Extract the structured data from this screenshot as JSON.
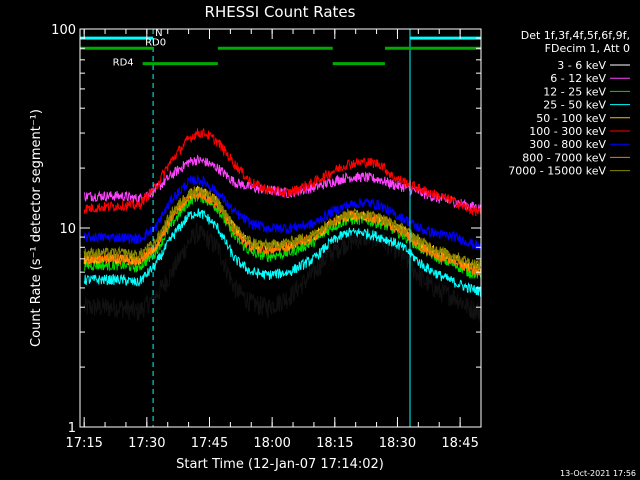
{
  "chart_data": {
    "type": "line",
    "title": "RHESSI Count Rates",
    "xlabel": "Start Time (12-Jan-07 17:14:02)",
    "ylabel": "Count Rate (s⁻¹ detector segment⁻¹)",
    "yscale": "log",
    "ylim": [
      1,
      100
    ],
    "xlim_minutes": [
      0,
      96
    ],
    "x_ticks": [
      {
        "t": 1,
        "label": "17:15"
      },
      {
        "t": 16,
        "label": "17:30"
      },
      {
        "t": 31,
        "label": "17:45"
      },
      {
        "t": 46,
        "label": "18:00"
      },
      {
        "t": 61,
        "label": "18:15"
      },
      {
        "t": 76,
        "label": "18:30"
      },
      {
        "t": 91,
        "label": "18:45"
      }
    ],
    "y_ticks": [
      {
        "v": 1,
        "label": "1"
      },
      {
        "v": 10,
        "label": "10"
      },
      {
        "v": 100,
        "label": "100"
      }
    ],
    "x_unit": "minutes from 17:14",
    "legend_header": [
      "Det 1f,3f,4f,5f,6f,9f,",
      "FDecim 1, Att 0"
    ],
    "series": [
      {
        "name": "3 - 6 keV",
        "color": "#000000",
        "noise": 0.1,
        "points": [
          [
            1,
            4
          ],
          [
            10,
            4
          ],
          [
            14,
            3.8
          ],
          [
            18,
            4.5
          ],
          [
            22,
            6
          ],
          [
            26,
            8.5
          ],
          [
            28,
            9.5
          ],
          [
            30,
            9
          ],
          [
            33,
            8
          ],
          [
            37,
            5
          ],
          [
            41,
            4.2
          ],
          [
            45,
            4
          ],
          [
            50,
            4.5
          ],
          [
            56,
            6
          ],
          [
            60,
            7.5
          ],
          [
            64,
            8.5
          ],
          [
            68,
            9
          ],
          [
            72,
            8.8
          ],
          [
            75,
            8
          ],
          [
            78,
            7
          ],
          [
            82,
            5.5
          ],
          [
            86,
            4.8
          ],
          [
            90,
            4.5
          ],
          [
            93,
            4
          ],
          [
            96,
            3.8
          ]
        ]
      },
      {
        "name": "6 - 12 keV",
        "color": "#ff44ff",
        "points": [
          [
            1,
            14.5
          ],
          [
            10,
            14.5
          ],
          [
            14,
            14
          ],
          [
            18,
            15.5
          ],
          [
            22,
            18.5
          ],
          [
            26,
            21.5
          ],
          [
            28,
            22
          ],
          [
            30,
            21.5
          ],
          [
            33,
            20
          ],
          [
            37,
            17
          ],
          [
            41,
            16
          ],
          [
            45,
            15.5
          ],
          [
            50,
            15
          ],
          [
            56,
            16
          ],
          [
            60,
            17
          ],
          [
            64,
            18
          ],
          [
            68,
            18
          ],
          [
            72,
            17.5
          ],
          [
            75,
            16.5
          ],
          [
            78,
            16
          ],
          [
            82,
            15
          ],
          [
            86,
            14
          ],
          [
            90,
            13.5
          ],
          [
            93,
            13
          ],
          [
            96,
            12.5
          ]
        ]
      },
      {
        "name": "12 - 25 keV",
        "color": "#00dd00",
        "points": [
          [
            1,
            6.5
          ],
          [
            10,
            6.5
          ],
          [
            14,
            6.3
          ],
          [
            18,
            7.5
          ],
          [
            22,
            10.5
          ],
          [
            26,
            13.5
          ],
          [
            28,
            14.5
          ],
          [
            30,
            14
          ],
          [
            33,
            12.5
          ],
          [
            37,
            9
          ],
          [
            41,
            7.5
          ],
          [
            45,
            7.2
          ],
          [
            50,
            7.5
          ],
          [
            56,
            8.5
          ],
          [
            60,
            10
          ],
          [
            64,
            11
          ],
          [
            68,
            11
          ],
          [
            72,
            10.5
          ],
          [
            75,
            9.8
          ],
          [
            78,
            9
          ],
          [
            82,
            7.8
          ],
          [
            86,
            7
          ],
          [
            90,
            6.5
          ],
          [
            93,
            6
          ],
          [
            96,
            5.8
          ]
        ]
      },
      {
        "name": "25 - 50 keV",
        "color": "#00ffff",
        "points": [
          [
            1,
            5.5
          ],
          [
            10,
            5.5
          ],
          [
            14,
            5.3
          ],
          [
            18,
            6.5
          ],
          [
            22,
            9
          ],
          [
            26,
            11.5
          ],
          [
            28,
            12
          ],
          [
            30,
            11.5
          ],
          [
            33,
            10
          ],
          [
            37,
            7
          ],
          [
            41,
            6
          ],
          [
            45,
            5.8
          ],
          [
            50,
            6
          ],
          [
            56,
            7
          ],
          [
            60,
            8.5
          ],
          [
            64,
            9.5
          ],
          [
            68,
            9.5
          ],
          [
            72,
            9
          ],
          [
            75,
            8.5
          ],
          [
            78,
            7.8
          ],
          [
            82,
            6.5
          ],
          [
            86,
            5.8
          ],
          [
            90,
            5.3
          ],
          [
            93,
            5
          ],
          [
            96,
            4.8
          ]
        ]
      },
      {
        "name": "50 - 100 keV",
        "color": "#ffbb00",
        "points": [
          [
            1,
            7
          ],
          [
            10,
            7
          ],
          [
            14,
            6.8
          ],
          [
            18,
            8
          ],
          [
            22,
            11.5
          ],
          [
            26,
            14.5
          ],
          [
            28,
            15.5
          ],
          [
            30,
            15
          ],
          [
            33,
            13.5
          ],
          [
            37,
            10
          ],
          [
            41,
            8.2
          ],
          [
            45,
            8
          ],
          [
            50,
            8.2
          ],
          [
            56,
            9
          ],
          [
            60,
            10.5
          ],
          [
            64,
            11.5
          ],
          [
            68,
            11.5
          ],
          [
            72,
            11
          ],
          [
            75,
            10.3
          ],
          [
            78,
            9.5
          ],
          [
            82,
            8.3
          ],
          [
            86,
            7.5
          ],
          [
            90,
            7
          ],
          [
            93,
            6.5
          ],
          [
            96,
            6.3
          ]
        ]
      },
      {
        "name": "100 - 300 keV",
        "color": "#ff0000",
        "points": [
          [
            1,
            12.5
          ],
          [
            10,
            13
          ],
          [
            14,
            13
          ],
          [
            18,
            16
          ],
          [
            22,
            22
          ],
          [
            26,
            28
          ],
          [
            28,
            30
          ],
          [
            30,
            30
          ],
          [
            33,
            27
          ],
          [
            37,
            21
          ],
          [
            41,
            17
          ],
          [
            45,
            15.5
          ],
          [
            50,
            15
          ],
          [
            56,
            17
          ],
          [
            60,
            19
          ],
          [
            64,
            21
          ],
          [
            68,
            21.5
          ],
          [
            72,
            21
          ],
          [
            75,
            18
          ],
          [
            78,
            17
          ],
          [
            82,
            15.5
          ],
          [
            86,
            14.5
          ],
          [
            90,
            13.5
          ],
          [
            93,
            12.5
          ],
          [
            96,
            12
          ]
        ]
      },
      {
        "name": "300 - 800 keV",
        "color": "#0000ff",
        "points": [
          [
            1,
            9
          ],
          [
            10,
            9
          ],
          [
            14,
            8.8
          ],
          [
            18,
            10
          ],
          [
            22,
            14
          ],
          [
            26,
            17
          ],
          [
            28,
            17.5
          ],
          [
            30,
            17
          ],
          [
            33,
            15
          ],
          [
            37,
            12
          ],
          [
            41,
            10.5
          ],
          [
            45,
            10
          ],
          [
            50,
            10
          ],
          [
            56,
            10.5
          ],
          [
            60,
            12
          ],
          [
            64,
            13
          ],
          [
            68,
            13.5
          ],
          [
            72,
            13
          ],
          [
            75,
            11.8
          ],
          [
            78,
            11
          ],
          [
            82,
            9.8
          ],
          [
            86,
            9.3
          ],
          [
            90,
            9
          ],
          [
            93,
            8.5
          ],
          [
            96,
            8
          ]
        ]
      },
      {
        "name": "800 - 7000 keV",
        "color": "#ff7700",
        "points": [
          [
            1,
            7
          ],
          [
            10,
            7
          ],
          [
            14,
            6.8
          ],
          [
            18,
            8
          ],
          [
            22,
            11.5
          ],
          [
            26,
            14.5
          ],
          [
            28,
            15
          ],
          [
            30,
            14.5
          ],
          [
            33,
            13
          ],
          [
            37,
            9.5
          ],
          [
            41,
            8
          ],
          [
            45,
            7.8
          ],
          [
            50,
            8
          ],
          [
            56,
            9
          ],
          [
            60,
            10.5
          ],
          [
            64,
            11.5
          ],
          [
            68,
            11.5
          ],
          [
            72,
            11
          ],
          [
            75,
            10.2
          ],
          [
            78,
            9.3
          ],
          [
            82,
            8
          ],
          [
            86,
            7.2
          ],
          [
            90,
            6.8
          ],
          [
            93,
            6.3
          ],
          [
            96,
            6
          ]
        ]
      },
      {
        "name": "7000 - 15000 keV",
        "color": "#888800",
        "points": [
          [
            1,
            7.5
          ],
          [
            10,
            7.5
          ],
          [
            14,
            7.3
          ],
          [
            18,
            8.5
          ],
          [
            22,
            12
          ],
          [
            26,
            15
          ],
          [
            28,
            15.5
          ],
          [
            30,
            15
          ],
          [
            33,
            13.5
          ],
          [
            37,
            10
          ],
          [
            41,
            8.5
          ],
          [
            45,
            8.2
          ],
          [
            50,
            8.5
          ],
          [
            56,
            9.3
          ],
          [
            60,
            10.8
          ],
          [
            64,
            11.8
          ],
          [
            68,
            11.8
          ],
          [
            72,
            11.3
          ],
          [
            75,
            10.5
          ],
          [
            78,
            9.7
          ],
          [
            82,
            8.5
          ],
          [
            86,
            7.7
          ],
          [
            90,
            7.2
          ],
          [
            93,
            6.8
          ],
          [
            96,
            6.5
          ]
        ]
      }
    ],
    "status_bars": [
      {
        "label": "N",
        "color": "#00ffff",
        "value": 90,
        "segments": [
          [
            0,
            17.5
          ],
          [
            79,
            96
          ]
        ]
      },
      {
        "label": "RD0",
        "color": "#00aa00",
        "value": 80,
        "segments": [
          [
            0,
            17.5
          ],
          [
            33,
            60.5
          ],
          [
            73,
            96
          ]
        ]
      },
      {
        "label": "RD4",
        "color": "#00aa00",
        "value": 67,
        "segments": [
          [
            15,
            33
          ],
          [
            60.5,
            73
          ]
        ]
      }
    ],
    "vertical_markers": [
      {
        "t": 0,
        "style": "solid"
      },
      {
        "t": 17.5,
        "style": "dashed"
      },
      {
        "t": 79,
        "style": "solid"
      },
      {
        "t": 96,
        "style": "dashed"
      }
    ],
    "footer_stamp": "13-Oct-2021 17:56"
  }
}
